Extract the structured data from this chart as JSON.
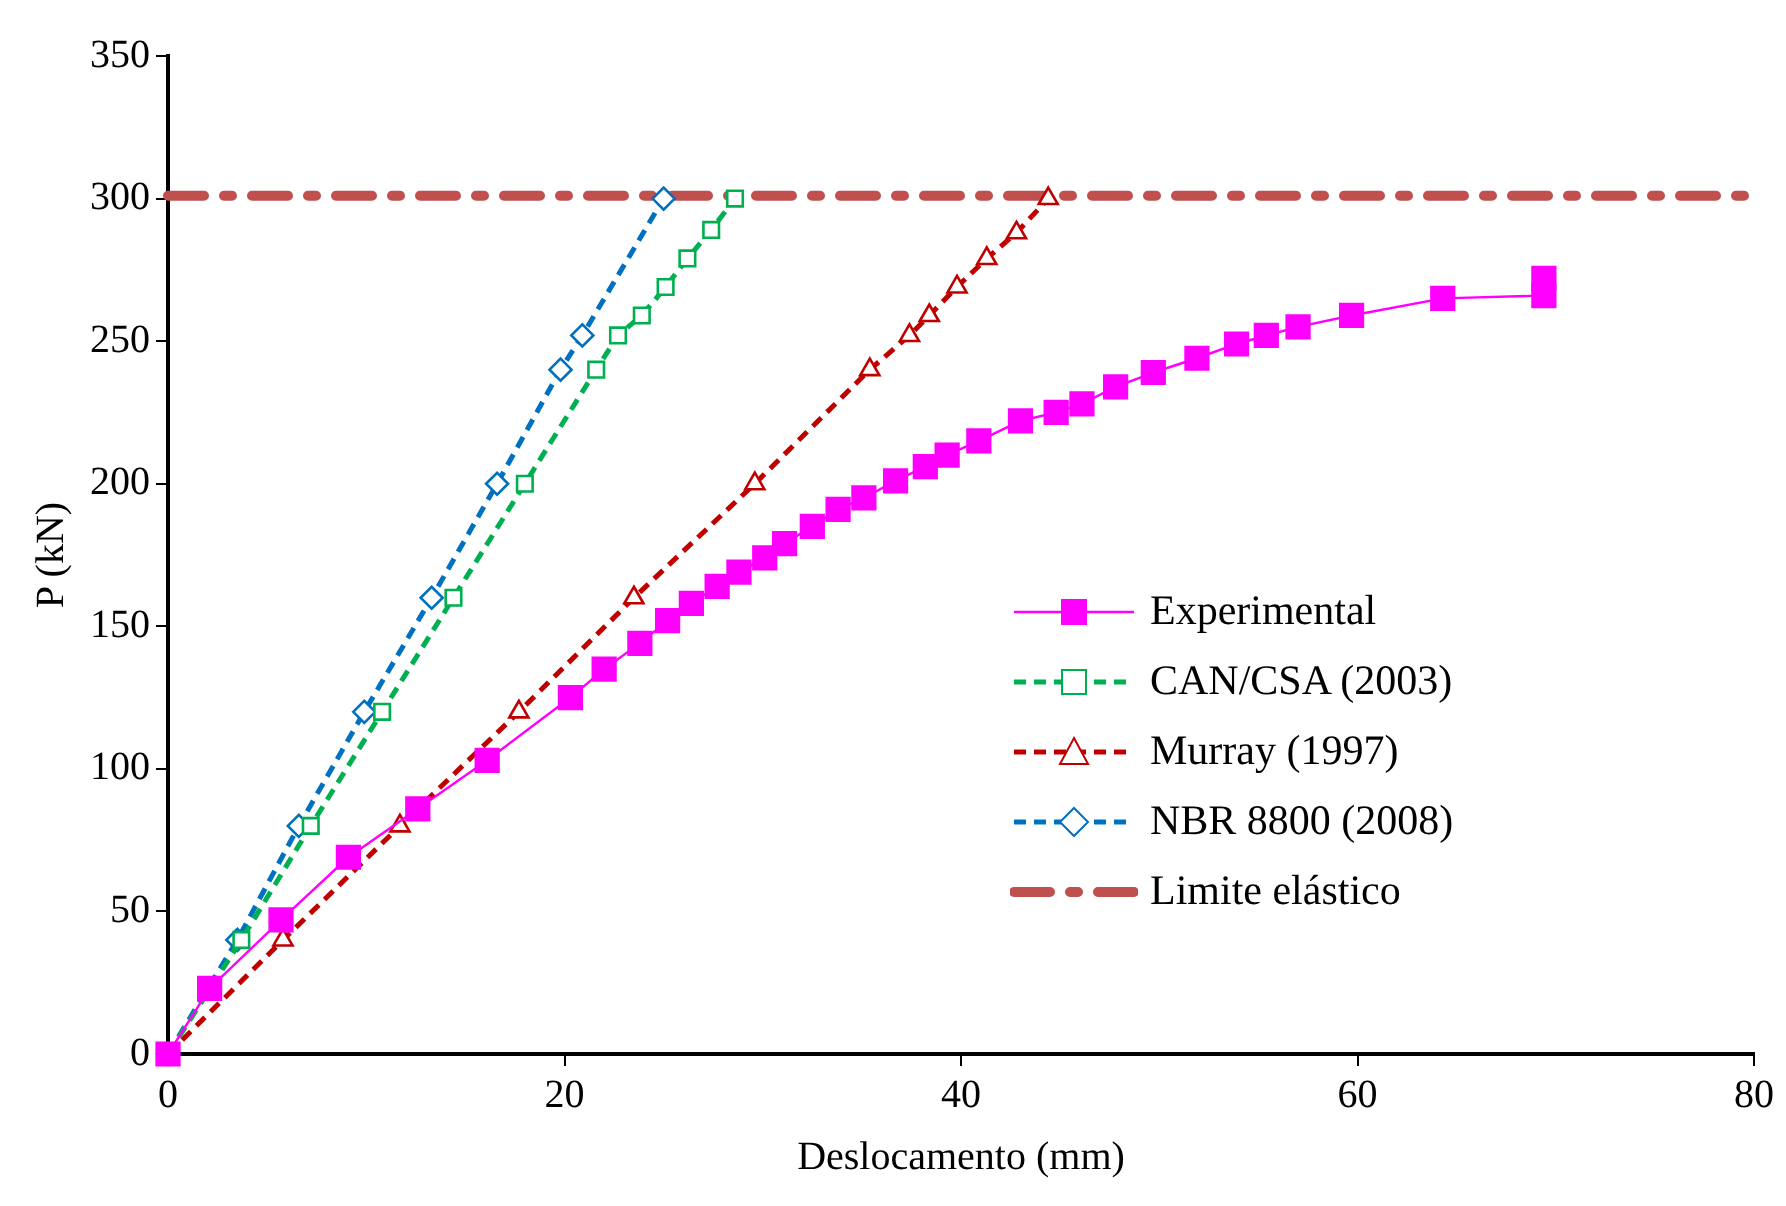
{
  "chart_data": {
    "type": "line",
    "xlabel": "Deslocamento (mm)",
    "ylabel": "P (kN)",
    "xlim": [
      0,
      80
    ],
    "xticks": [
      0,
      20,
      40,
      60,
      80
    ],
    "ylim": [
      0,
      350
    ],
    "yticks": [
      0,
      50,
      100,
      150,
      200,
      250,
      300,
      350
    ],
    "grid": false,
    "legend": "right",
    "series": [
      {
        "name": "Experimental",
        "color": "#ff00ff",
        "marker": "square",
        "line_style": "solid",
        "x": [
          0,
          2.1,
          5.7,
          9.1,
          12.6,
          16.1,
          20.3,
          22,
          23.8,
          25.2,
          26.4,
          27.7,
          28.8,
          30.1,
          31.1,
          32.5,
          33.8,
          35.1,
          36.7,
          38.2,
          39.3,
          40.9,
          43,
          44.8,
          46.1,
          47.8,
          49.7,
          51.9,
          53.9,
          55.4,
          57,
          59.7,
          64.3,
          69.4,
          69.4
        ],
        "values": [
          0,
          23,
          47,
          69,
          86,
          103,
          125,
          135,
          144,
          152,
          158,
          164,
          169,
          174,
          179,
          185,
          191,
          195,
          201,
          206,
          210,
          215,
          222,
          225,
          228,
          234,
          239,
          244,
          249,
          252,
          255,
          259,
          265,
          266,
          272
        ]
      },
      {
        "name": "CAN/CSA (2003)",
        "color": "#00b050",
        "marker": "square",
        "line_style": "dashed",
        "x": [
          0,
          3.7,
          7.2,
          10.8,
          14.4,
          18,
          21.6,
          22.7,
          23.9,
          25.1,
          26.2,
          27.4,
          28.6
        ],
        "values": [
          0,
          40,
          80,
          120,
          160,
          200,
          240,
          252,
          259,
          269,
          279,
          289,
          300
        ]
      },
      {
        "name": "Murray (1997)",
        "color": "#c00000",
        "marker": "triangle",
        "line_style": "dashed",
        "x": [
          0,
          5.8,
          11.7,
          17.7,
          23.5,
          29.6,
          35.4,
          37.4,
          38.4,
          39.8,
          41.3,
          42.8,
          44.4
        ],
        "values": [
          0,
          40,
          80,
          120,
          160,
          200,
          240,
          252,
          259,
          269,
          279,
          288,
          300
        ]
      },
      {
        "name": "NBR 8800 (2008)",
        "color": "#0070c0",
        "marker": "diamond",
        "line_style": "dashed",
        "x": [
          0,
          3.5,
          6.6,
          9.9,
          13.3,
          16.6,
          19.8,
          20.9,
          25
        ],
        "values": [
          0,
          40,
          80,
          120,
          160,
          200,
          240,
          252,
          300
        ]
      },
      {
        "name": "Limite elástico",
        "color": "#c0504d",
        "marker": "none",
        "line_style": "dashdot",
        "x": [
          0,
          80
        ],
        "values": [
          301,
          301
        ]
      }
    ]
  }
}
